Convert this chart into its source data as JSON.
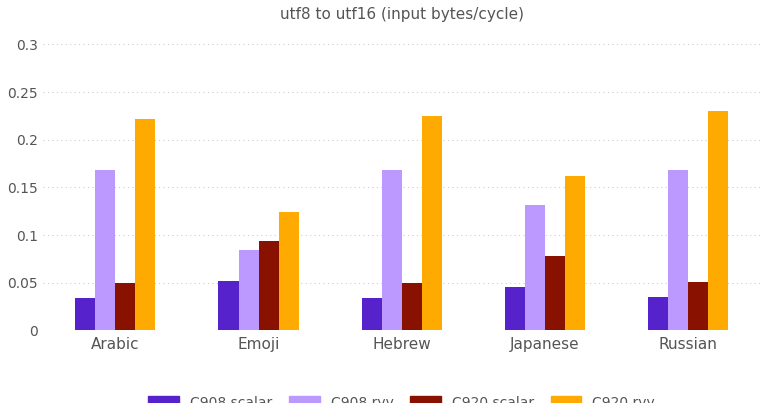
{
  "title": "utf8 to utf16 (input bytes/cycle)",
  "categories": [
    "Arabic",
    "Emoji",
    "Hebrew",
    "Japanese",
    "Russian"
  ],
  "series": {
    "C908 scalar": [
      0.034,
      0.052,
      0.034,
      0.046,
      0.035
    ],
    "C908 rvv": [
      0.168,
      0.084,
      0.168,
      0.132,
      0.168
    ],
    "C920 scalar": [
      0.05,
      0.094,
      0.05,
      0.078,
      0.051
    ],
    "C920 rvv": [
      0.222,
      0.124,
      0.225,
      0.162,
      0.23
    ]
  },
  "colors": {
    "C908 scalar": "#5522cc",
    "C908 rvv": "#bb99ff",
    "C920 scalar": "#881100",
    "C920 rvv": "#ffaa00"
  },
  "ylim": [
    0,
    0.315
  ],
  "yticks": [
    0,
    0.05,
    0.1,
    0.15,
    0.2,
    0.25,
    0.3
  ],
  "background_color": "#ffffff",
  "plot_bg_color": "#ffffff",
  "grid_color": "#cccccc",
  "bar_width": 0.14,
  "title_fontsize": 11,
  "tick_fontsize": 10,
  "label_fontsize": 11,
  "legend_fontsize": 10
}
